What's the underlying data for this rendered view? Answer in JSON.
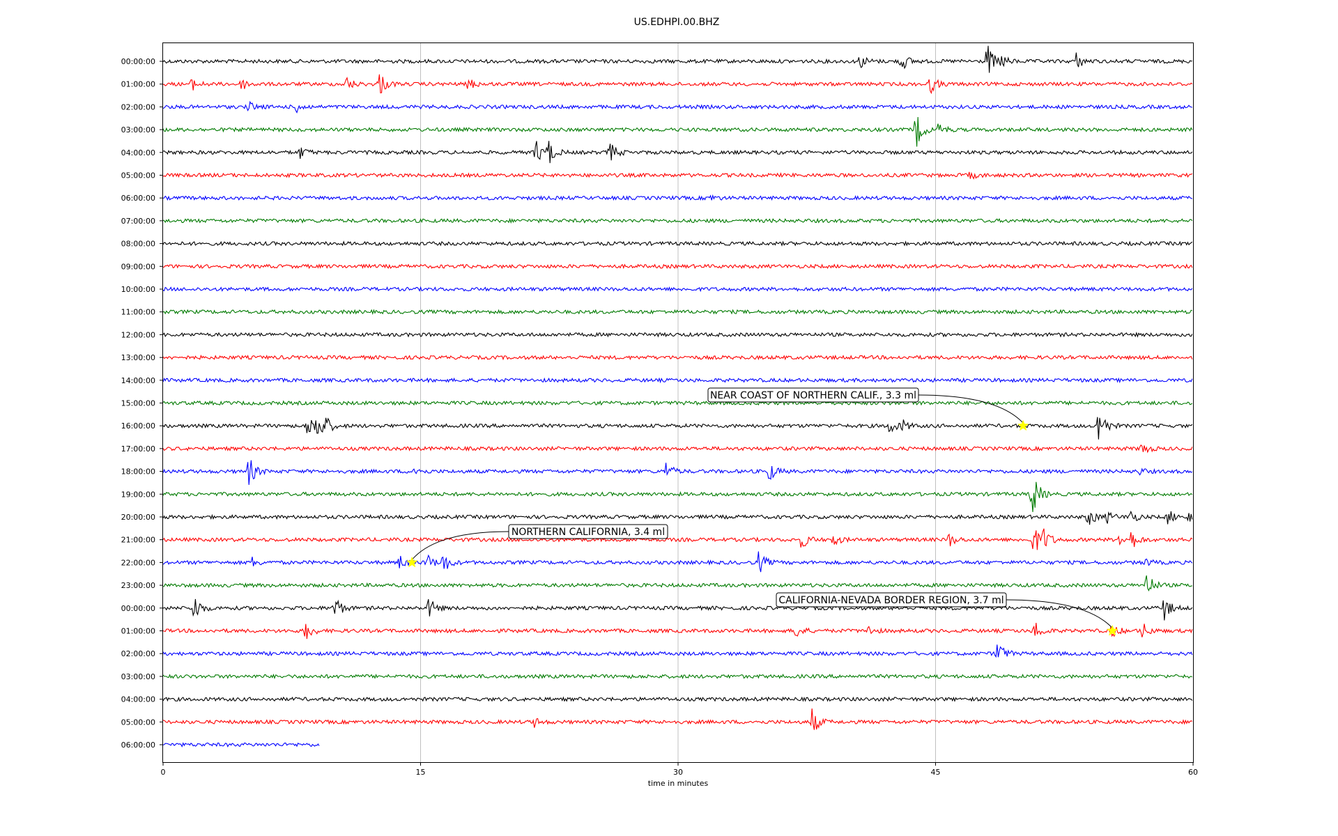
{
  "chart_data": {
    "type": "line",
    "title": "US.EDHPI.00.BHZ",
    "xlabel": "time in minutes",
    "ylabel": "",
    "xlim": [
      0,
      60
    ],
    "x_ticks": [
      "0",
      "15",
      "30",
      "45",
      "60"
    ],
    "grid": "vertical",
    "trace_colors": [
      "#000000",
      "#ff0000",
      "#0000ff",
      "#007a00"
    ],
    "rows": [
      {
        "label": "00:00:00",
        "end_minute": 60,
        "events": [
          [
            40.6,
            0.6
          ],
          [
            43.0,
            0.9
          ],
          [
            48.0,
            1.6
          ],
          [
            48.8,
            0.6
          ],
          [
            53.2,
            0.7
          ]
        ]
      },
      {
        "label": "01:00:00",
        "end_minute": 60,
        "events": [
          [
            1.7,
            0.5
          ],
          [
            4.6,
            0.5
          ],
          [
            10.7,
            0.6
          ],
          [
            12.6,
            1.1
          ],
          [
            17.8,
            0.5
          ],
          [
            44.7,
            0.8
          ]
        ]
      },
      {
        "label": "02:00:00",
        "end_minute": 60,
        "events": [
          [
            5.0,
            0.4
          ],
          [
            7.8,
            0.5
          ]
        ]
      },
      {
        "label": "03:00:00",
        "end_minute": 60,
        "events": [
          [
            43.8,
            1.9
          ],
          [
            45.2,
            0.6
          ]
        ]
      },
      {
        "label": "04:00:00",
        "end_minute": 60,
        "events": [
          [
            8.0,
            0.5
          ],
          [
            21.7,
            1.1
          ],
          [
            22.4,
            1.3
          ],
          [
            26.0,
            1.0
          ]
        ]
      },
      {
        "label": "05:00:00",
        "end_minute": 60,
        "events": [
          [
            47.0,
            0.3
          ]
        ]
      },
      {
        "label": "06:00:00",
        "end_minute": 60,
        "events": [
          [
            31.8,
            0.3
          ]
        ]
      },
      {
        "label": "07:00:00",
        "end_minute": 60,
        "events": []
      },
      {
        "label": "08:00:00",
        "end_minute": 60,
        "events": []
      },
      {
        "label": "09:00:00",
        "end_minute": 60,
        "events": []
      },
      {
        "label": "10:00:00",
        "end_minute": 60,
        "events": []
      },
      {
        "label": "11:00:00",
        "end_minute": 60,
        "events": []
      },
      {
        "label": "12:00:00",
        "end_minute": 60,
        "events": []
      },
      {
        "label": "13:00:00",
        "end_minute": 60,
        "events": []
      },
      {
        "label": "14:00:00",
        "end_minute": 60,
        "events": []
      },
      {
        "label": "15:00:00",
        "end_minute": 60,
        "events": []
      },
      {
        "label": "16:00:00",
        "end_minute": 60,
        "events": [
          [
            8.4,
            0.9
          ],
          [
            8.9,
            1.9
          ],
          [
            9.5,
            0.8
          ],
          [
            42.3,
            0.8
          ],
          [
            43.1,
            0.5
          ],
          [
            54.5,
            1.9
          ]
        ]
      },
      {
        "label": "17:00:00",
        "end_minute": 60,
        "events": [
          [
            57.0,
            0.6
          ]
        ]
      },
      {
        "label": "18:00:00",
        "end_minute": 60,
        "events": [
          [
            5.0,
            1.3
          ],
          [
            14.6,
            0.4
          ],
          [
            29.3,
            0.8
          ],
          [
            35.3,
            0.9
          ],
          [
            56.8,
            0.3
          ]
        ]
      },
      {
        "label": "19:00:00",
        "end_minute": 60,
        "events": [
          [
            50.6,
            2.4
          ]
        ]
      },
      {
        "label": "20:00:00",
        "end_minute": 60,
        "events": [
          [
            53.9,
            0.9
          ],
          [
            55.0,
            0.5
          ],
          [
            56.3,
            0.7
          ],
          [
            58.5,
            0.7
          ],
          [
            59.8,
            0.6
          ]
        ]
      },
      {
        "label": "21:00:00",
        "end_minute": 60,
        "events": [
          [
            37.2,
            0.8
          ],
          [
            39.0,
            0.6
          ],
          [
            45.8,
            0.6
          ],
          [
            50.7,
            1.5
          ],
          [
            51.3,
            1.1
          ],
          [
            55.6,
            0.6
          ],
          [
            56.4,
            0.9
          ]
        ]
      },
      {
        "label": "22:00:00",
        "end_minute": 60,
        "events": [
          [
            5.2,
            0.4
          ],
          [
            13.8,
            0.6
          ],
          [
            15.3,
            0.9
          ],
          [
            16.3,
            1.0
          ],
          [
            34.7,
            1.0
          ],
          [
            57.2,
            0.3
          ]
        ]
      },
      {
        "label": "23:00:00",
        "end_minute": 60,
        "events": [
          [
            57.3,
            1.2
          ]
        ]
      },
      {
        "label": "00:00:00",
        "end_minute": 60,
        "events": [
          [
            1.8,
            1.3
          ],
          [
            10.0,
            1.1
          ],
          [
            15.5,
            0.9
          ],
          [
            58.3,
            1.1
          ]
        ]
      },
      {
        "label": "01:00:00",
        "end_minute": 60,
        "events": [
          [
            8.3,
            0.9
          ],
          [
            36.8,
            0.8
          ],
          [
            41.0,
            0.5
          ],
          [
            50.8,
            0.9
          ],
          [
            55.3,
            0.6
          ],
          [
            57.0,
            0.8
          ]
        ]
      },
      {
        "label": "02:00:00",
        "end_minute": 60,
        "events": [
          [
            48.6,
            1.3
          ]
        ]
      },
      {
        "label": "03:00:00",
        "end_minute": 60,
        "events": []
      },
      {
        "label": "04:00:00",
        "end_minute": 60,
        "events": []
      },
      {
        "label": "05:00:00",
        "end_minute": 60,
        "events": [
          [
            21.6,
            0.4
          ],
          [
            37.8,
            1.2
          ]
        ]
      },
      {
        "label": "06:00:00",
        "end_minute": 9.1,
        "events": []
      }
    ],
    "annotations": [
      {
        "text": "NEAR COAST OF NORTHERN CALIF., 3.3 ml",
        "row": 16,
        "minute": 50.1
      },
      {
        "text": "NORTHERN CALIFORNIA, 3.4 ml",
        "row": 22,
        "minute": 14.5
      },
      {
        "text": "CALIFORNIA-NEVADA BORDER REGION, 3.7 ml",
        "row": 25,
        "minute": 55.3
      }
    ],
    "event_marker_color": "#ffff00"
  }
}
